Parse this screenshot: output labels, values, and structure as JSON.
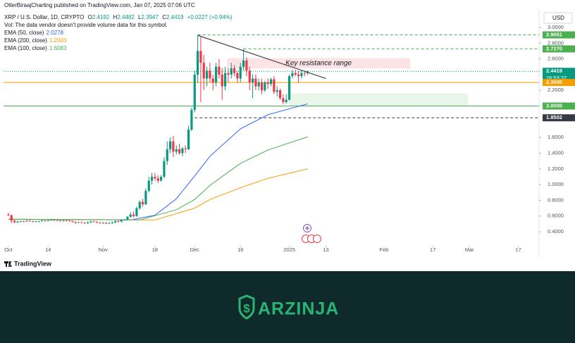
{
  "header": {
    "publisher": "OtterBiraajCharting published on TradingView.com, Jan 07, 2025 07:06 UTC",
    "volume_note": "Vol: The data vendor doesn't provide volume data for this symbol."
  },
  "chart_data": {
    "type": "candlestick",
    "title": "XRP / U.S. Dollar, 1D, CRYPTO",
    "quote": {
      "open_label": "O",
      "open": 2.4192,
      "high_label": "H",
      "high": 2.4482,
      "low_label": "L",
      "low": 2.3947,
      "close_label": "C",
      "close": 2.4419,
      "change": "+0.0227 (+0.94%)"
    },
    "currency": "USD",
    "up_color": "#089981",
    "down_color": "#f23645",
    "candles": [
      [
        0.62,
        0.64,
        0.6,
        0.61
      ],
      [
        0.61,
        0.62,
        0.51,
        0.54
      ],
      [
        0.54,
        0.55,
        0.51,
        0.52
      ],
      [
        0.52,
        0.54,
        0.51,
        0.53
      ],
      [
        0.53,
        0.54,
        0.52,
        0.535
      ],
      [
        0.535,
        0.54,
        0.52,
        0.53
      ],
      [
        0.53,
        0.55,
        0.53,
        0.54
      ],
      [
        0.54,
        0.55,
        0.53,
        0.535
      ],
      [
        0.535,
        0.54,
        0.52,
        0.53
      ],
      [
        0.53,
        0.54,
        0.52,
        0.53
      ],
      [
        0.53,
        0.54,
        0.52,
        0.535
      ],
      [
        0.535,
        0.55,
        0.53,
        0.545
      ],
      [
        0.545,
        0.55,
        0.53,
        0.54
      ],
      [
        0.54,
        0.55,
        0.53,
        0.545
      ],
      [
        0.545,
        0.56,
        0.54,
        0.55
      ],
      [
        0.55,
        0.56,
        0.54,
        0.545
      ],
      [
        0.545,
        0.55,
        0.54,
        0.545
      ],
      [
        0.545,
        0.55,
        0.53,
        0.54
      ],
      [
        0.54,
        0.55,
        0.53,
        0.545
      ],
      [
        0.545,
        0.55,
        0.53,
        0.54
      ],
      [
        0.54,
        0.55,
        0.53,
        0.535
      ],
      [
        0.535,
        0.54,
        0.52,
        0.525
      ],
      [
        0.525,
        0.53,
        0.5,
        0.515
      ],
      [
        0.515,
        0.53,
        0.51,
        0.52
      ],
      [
        0.52,
        0.53,
        0.51,
        0.515
      ],
      [
        0.515,
        0.52,
        0.5,
        0.51
      ],
      [
        0.51,
        0.53,
        0.5,
        0.52
      ],
      [
        0.52,
        0.54,
        0.51,
        0.53
      ],
      [
        0.53,
        0.54,
        0.52,
        0.525
      ],
      [
        0.525,
        0.53,
        0.51,
        0.515
      ],
      [
        0.515,
        0.52,
        0.5,
        0.51
      ],
      [
        0.51,
        0.52,
        0.5,
        0.515
      ],
      [
        0.515,
        0.52,
        0.5,
        0.505
      ],
      [
        0.505,
        0.52,
        0.5,
        0.51
      ],
      [
        0.51,
        0.53,
        0.5,
        0.52
      ],
      [
        0.52,
        0.54,
        0.51,
        0.535
      ],
      [
        0.535,
        0.55,
        0.52,
        0.53
      ],
      [
        0.53,
        0.56,
        0.52,
        0.55
      ],
      [
        0.55,
        0.56,
        0.54,
        0.555
      ],
      [
        0.555,
        0.6,
        0.55,
        0.59
      ],
      [
        0.59,
        0.65,
        0.58,
        0.62
      ],
      [
        0.62,
        0.66,
        0.58,
        0.6
      ],
      [
        0.6,
        0.72,
        0.59,
        0.7
      ],
      [
        0.7,
        0.8,
        0.68,
        0.78
      ],
      [
        0.78,
        0.82,
        0.72,
        0.75
      ],
      [
        0.75,
        0.95,
        0.74,
        0.92
      ],
      [
        0.92,
        1.1,
        0.9,
        1.05
      ],
      [
        1.05,
        1.15,
        1.0,
        1.1
      ],
      [
        1.1,
        1.15,
        1.05,
        1.08
      ],
      [
        1.08,
        1.12,
        1.02,
        1.05
      ],
      [
        1.05,
        1.12,
        1.04,
        1.1
      ],
      [
        1.1,
        1.35,
        1.08,
        1.3
      ],
      [
        1.3,
        1.55,
        1.25,
        1.45
      ],
      [
        1.45,
        1.6,
        1.4,
        1.55
      ],
      [
        1.55,
        1.62,
        1.35,
        1.42
      ],
      [
        1.42,
        1.5,
        1.38,
        1.45
      ],
      [
        1.45,
        1.52,
        1.38,
        1.4
      ],
      [
        1.4,
        1.48,
        1.36,
        1.46
      ],
      [
        1.46,
        1.5,
        1.4,
        1.45
      ],
      [
        1.45,
        1.75,
        1.44,
        1.7
      ],
      [
        1.7,
        1.98,
        1.68,
        1.95
      ],
      [
        1.95,
        2.45,
        1.92,
        2.4
      ],
      [
        2.4,
        2.9,
        2.3,
        2.7
      ],
      [
        2.7,
        2.88,
        2.05,
        2.55
      ],
      [
        2.55,
        2.65,
        2.2,
        2.35
      ],
      [
        2.35,
        2.5,
        2.25,
        2.45
      ],
      [
        2.45,
        2.55,
        2.3,
        2.35
      ],
      [
        2.35,
        2.4,
        2.2,
        2.3
      ],
      [
        2.3,
        2.55,
        2.25,
        2.5
      ],
      [
        2.5,
        2.6,
        2.35,
        2.4
      ],
      [
        2.4,
        2.48,
        2.08,
        2.25
      ],
      [
        2.25,
        2.5,
        2.2,
        2.42
      ],
      [
        2.42,
        2.48,
        2.3,
        2.4
      ],
      [
        2.4,
        2.55,
        2.35,
        2.48
      ],
      [
        2.48,
        2.52,
        2.38,
        2.42
      ],
      [
        2.42,
        2.45,
        2.3,
        2.35
      ],
      [
        2.35,
        2.55,
        2.3,
        2.5
      ],
      [
        2.5,
        2.73,
        2.45,
        2.58
      ],
      [
        2.58,
        2.62,
        2.38,
        2.45
      ],
      [
        2.45,
        2.5,
        2.2,
        2.3
      ],
      [
        2.3,
        2.4,
        2.1,
        2.35
      ],
      [
        2.35,
        2.4,
        2.2,
        2.25
      ],
      [
        2.25,
        2.35,
        2.2,
        2.3
      ],
      [
        2.3,
        2.35,
        2.15,
        2.2
      ],
      [
        2.2,
        2.32,
        2.18,
        2.3
      ],
      [
        2.3,
        2.35,
        2.22,
        2.28
      ],
      [
        2.28,
        2.36,
        2.25,
        2.34
      ],
      [
        2.34,
        2.38,
        2.15,
        2.18
      ],
      [
        2.18,
        2.25,
        2.12,
        2.2
      ],
      [
        2.2,
        2.22,
        2.08,
        2.1
      ],
      [
        2.1,
        2.15,
        2.02,
        2.05
      ],
      [
        2.05,
        2.15,
        2.03,
        2.08
      ],
      [
        2.08,
        2.4,
        2.07,
        2.38
      ],
      [
        2.38,
        2.46,
        2.35,
        2.42
      ],
      [
        2.42,
        2.46,
        2.38,
        2.4
      ],
      [
        2.4,
        2.45,
        2.3,
        2.38
      ],
      [
        2.38,
        2.46,
        2.35,
        2.42
      ],
      [
        2.42,
        2.45,
        2.38,
        2.4192
      ],
      [
        2.4192,
        2.4482,
        2.3947,
        2.4419
      ]
    ],
    "emas": [
      {
        "name": "EMA (50, close)",
        "value_label": "2.0278",
        "color": "#2962ff",
        "x": [
          0,
          40,
          48,
          55,
          61,
          66,
          76,
          85,
          98
        ],
        "values": [
          0.56,
          0.55,
          0.61,
          0.82,
          1.11,
          1.36,
          1.71,
          1.89,
          2.0278
        ]
      },
      {
        "name": "EMA (200, close)",
        "value_label": "1.2003",
        "color": "#ff9800",
        "x": [
          0,
          48,
          61,
          66,
          76,
          85,
          98
        ],
        "values": [
          0.56,
          0.55,
          0.7,
          0.81,
          0.96,
          1.08,
          1.2003
        ]
      },
      {
        "name": "EMA (100, close)",
        "value_label": "1.6083",
        "color": "#4caf50",
        "x": [
          0,
          43,
          55,
          61,
          66,
          76,
          85,
          98
        ],
        "values": [
          0.56,
          0.55,
          0.68,
          0.81,
          0.99,
          1.27,
          1.44,
          1.6083
        ]
      }
    ],
    "levels": [
      {
        "value": 2.9051,
        "label": "2.9051",
        "color": "#4caf50",
        "style": "dashed",
        "start": 62
      },
      {
        "value": 2.727,
        "label": "2.7270",
        "color": "#4caf50",
        "style": "dashed",
        "start": 77
      },
      {
        "value": 2.4419,
        "label": "2.4419",
        "sublabel": "16:53:37",
        "color": "#089981",
        "style": "dotted"
      },
      {
        "value": 2.3,
        "label": "2.3000",
        "color": "#f59d00",
        "style": "solid"
      },
      {
        "value": 2.0,
        "label": "2.0000",
        "color": "#4caf50",
        "style": "solid"
      },
      {
        "value": 1.8502,
        "label": "1.8502",
        "color": "#363a45",
        "style": "dashed",
        "start": 61
      }
    ],
    "trendline": {
      "x": [
        62,
        104
      ],
      "values": [
        2.9,
        2.35
      ],
      "color": "#434651"
    },
    "zones": [
      {
        "x": [
          71.6,
          131.6
        ],
        "values": [
          2.61,
          2.48
        ],
        "color": "#fce4e6",
        "label": "Key resistance range"
      },
      {
        "x": [
          92,
          150.5
        ],
        "values": [
          2.16,
          2.0
        ],
        "color": "#e8f5e9"
      }
    ],
    "xlim": [
      -1.6,
      173.8
    ],
    "xticks": [
      {
        "value": 0,
        "label": "Oct"
      },
      {
        "value": 13,
        "label": "14"
      },
      {
        "value": 31,
        "label": "Nov"
      },
      {
        "value": 48,
        "label": "18"
      },
      {
        "value": 61,
        "label": "Dec"
      },
      {
        "value": 76,
        "label": "16"
      },
      {
        "value": 92,
        "label": "2025"
      },
      {
        "value": 104,
        "label": "13"
      },
      {
        "value": 123,
        "label": "Feb"
      },
      {
        "value": 139,
        "label": "17"
      },
      {
        "value": 151,
        "label": "Mar"
      },
      {
        "value": 167,
        "label": "17"
      }
    ],
    "ylim": [
      0.257,
      3.17
    ],
    "yticks": [
      {
        "value": 3.0,
        "label": "3.0000"
      },
      {
        "value": 2.8,
        "label": "2.8000"
      },
      {
        "value": 2.6,
        "label": "2.6000"
      },
      {
        "value": 2.2,
        "label": "2.2000"
      },
      {
        "value": 1.6,
        "label": "1.6000"
      },
      {
        "value": 1.4,
        "label": "1.4000"
      },
      {
        "value": 1.2,
        "label": "1.2000"
      },
      {
        "value": 1.0,
        "label": "1.0000"
      },
      {
        "value": 0.8,
        "label": "0.8000"
      },
      {
        "value": 0.6,
        "label": "0.6000"
      },
      {
        "value": 0.4,
        "label": "0.4000"
      }
    ]
  },
  "branding": {
    "platform": "TradingView",
    "footer_brand": "ARZINJA"
  }
}
